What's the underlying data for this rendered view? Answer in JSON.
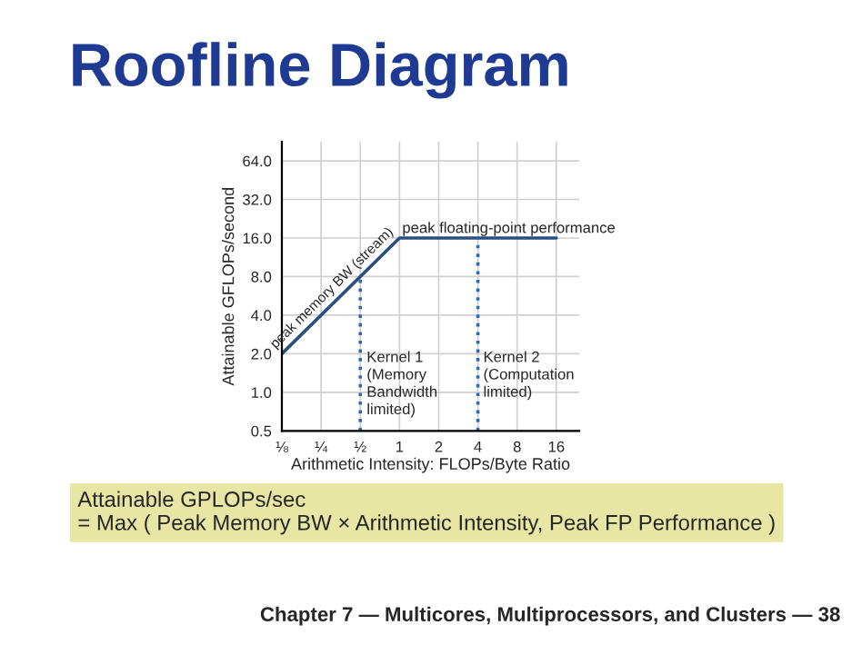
{
  "chart_data": {
    "type": "line",
    "title": "Roofline Diagram",
    "xlabel": "Arithmetic Intensity: FLOPs/Byte Ratio",
    "ylabel": "Attainable GFLOPs/second",
    "log": "xy",
    "grid": true,
    "marker": "none",
    "line_style": "solid",
    "xlim": [
      0.125,
      24
    ],
    "ylim": [
      0.5,
      90
    ],
    "xticks": [
      {
        "value": 0.125,
        "label": "⅛"
      },
      {
        "value": 0.25,
        "label": "¼"
      },
      {
        "value": 0.5,
        "label": "½"
      },
      1,
      2,
      4,
      8,
      16
    ],
    "yticks": [
      0.5,
      {
        "value": 1,
        "label": "1.0"
      },
      {
        "value": 2,
        "label": "2.0"
      },
      {
        "value": 4,
        "label": "4.0"
      },
      {
        "value": 8,
        "label": "8.0"
      },
      {
        "value": 16,
        "label": "16.0"
      },
      {
        "value": 32,
        "label": "32.0"
      },
      {
        "value": 64,
        "label": "64.0"
      }
    ],
    "series": [
      {
        "color": "#2b4f7e",
        "x": [
          0.125,
          1,
          16
        ],
        "values": [
          2,
          16,
          16
        ]
      },
      {
        "color": "#2e6bb0",
        "line_style": "dotted",
        "x": [
          0.5,
          0.5
        ],
        "values": [
          0.5,
          8
        ]
      },
      {
        "color": "#2e6bb0",
        "line_style": "dotted",
        "x": [
          4,
          4
        ],
        "values": [
          0.5,
          16
        ]
      }
    ],
    "annotations": [
      {
        "text": "peak memory BW (stream)",
        "x": 0.35,
        "y": 5.6
      },
      {
        "text": "peak floating-point performance",
        "x": 1.05,
        "y": 16.6
      },
      {
        "text": "Kernel 1\n(Memory\nBandwidth\nlimited)",
        "x": 0.56,
        "y": 2.1
      },
      {
        "text": "Kernel 2\n(Computation\nlimited)",
        "x": 4.4,
        "y": 2.1
      },
      "Attainable GPLOPs/sec\n= Max ( Peak Memory BW × Arithmetic Intensity, Peak FP Performance )",
      "Chapter 7 — Multicores, Multiprocessors, and Clusters — 38"
    ]
  }
}
